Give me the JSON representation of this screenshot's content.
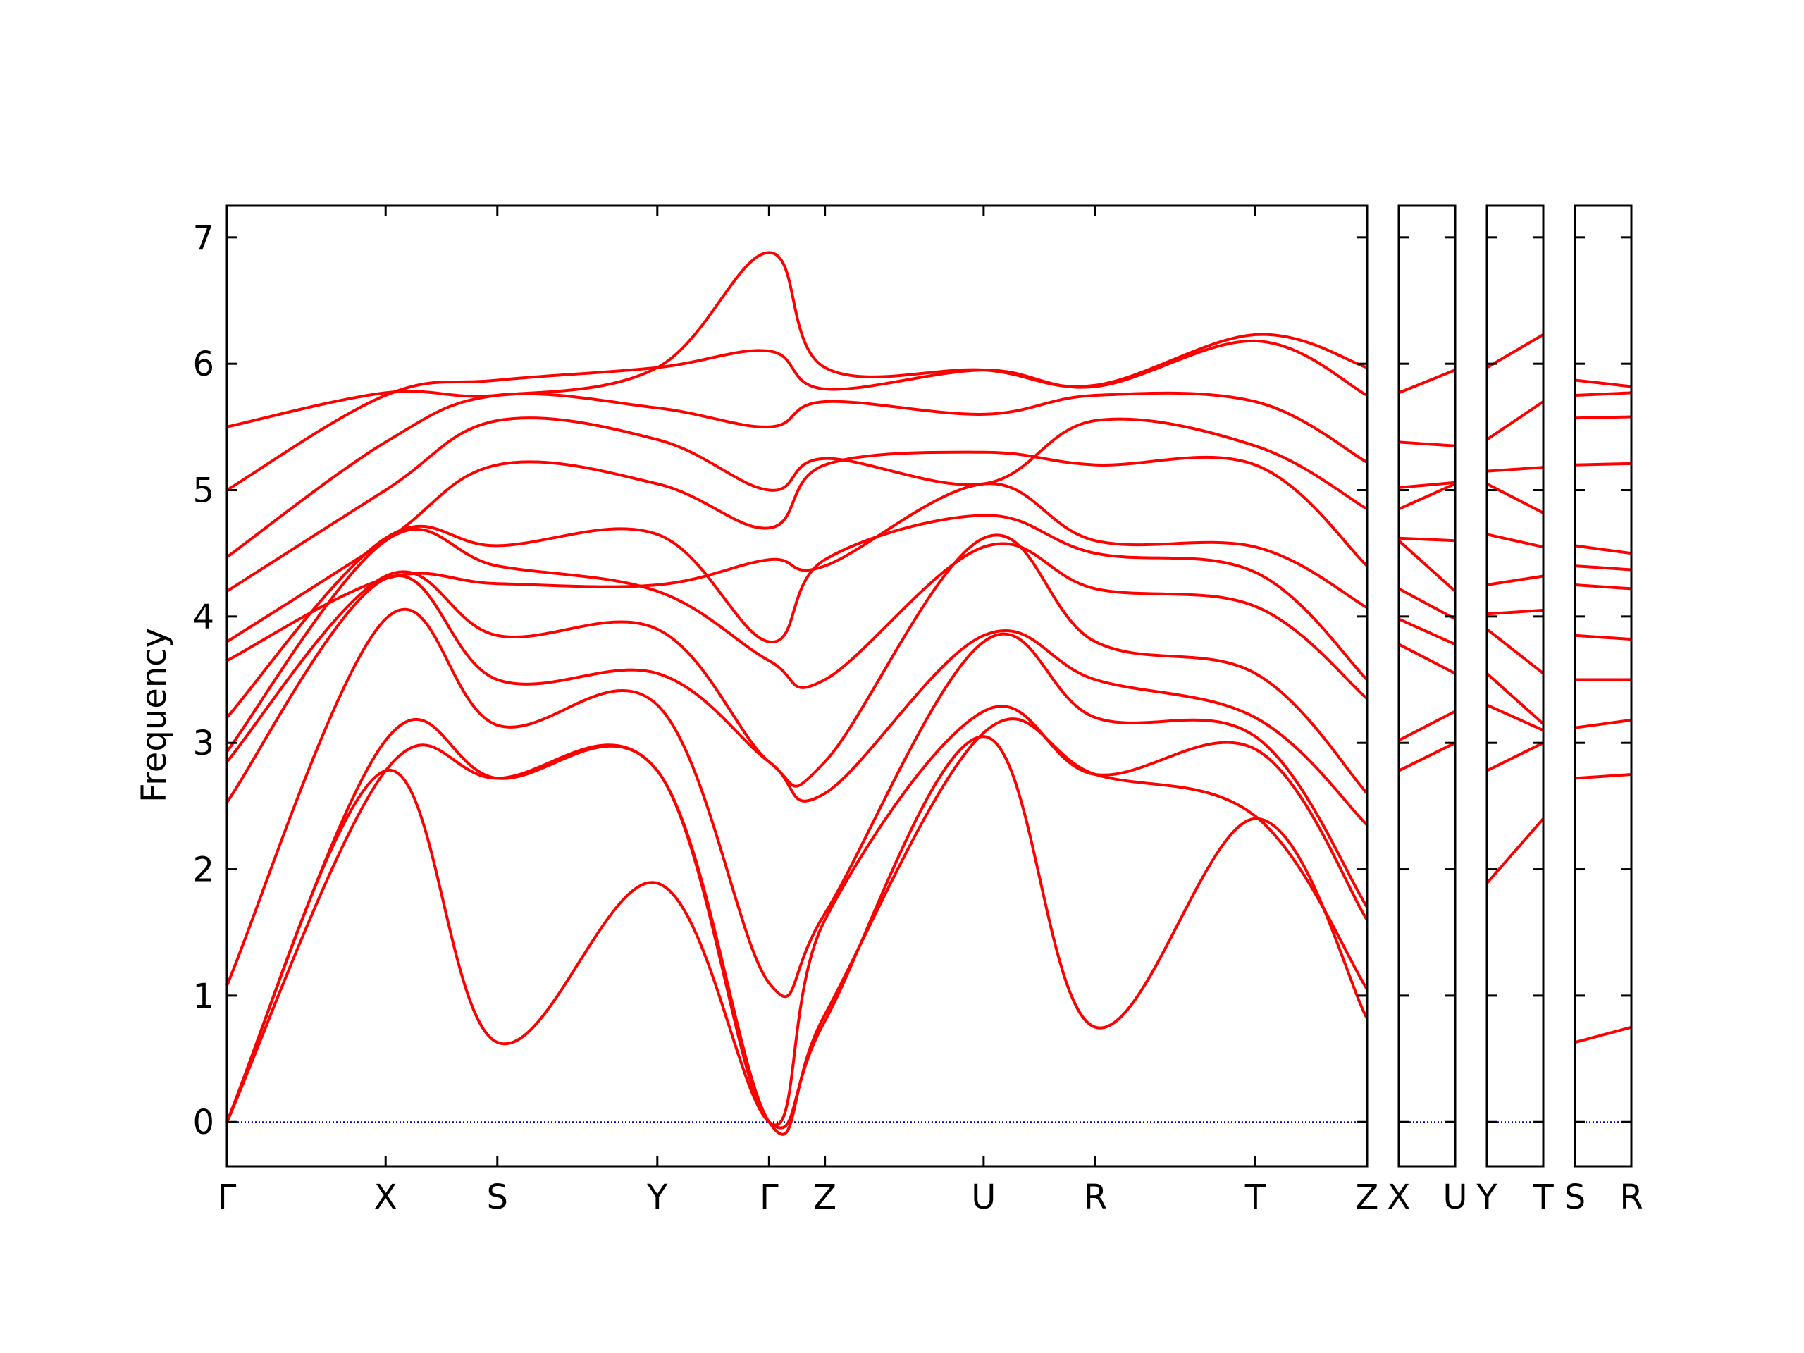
{
  "chart_data": {
    "type": "line",
    "title": "",
    "xlabel": "",
    "ylabel": "Frequency",
    "ylim": [
      -0.35,
      7.25
    ],
    "yticks": [
      0,
      1,
      2,
      3,
      4,
      5,
      6,
      7
    ],
    "grid": false,
    "legend": "none",
    "colors": {
      "bands": "#ff0000",
      "zero_line": "#0000cc",
      "axes": "#000000"
    },
    "panels": [
      {
        "labels": [
          "Γ",
          "X",
          "S",
          "Y",
          "Γ",
          "Z",
          "U",
          "R",
          "T",
          "Z"
        ],
        "segment_lengths": [
          1.25,
          0.88,
          1.26,
          0.88,
          0.44,
          1.25,
          0.88,
          1.26,
          0.88
        ],
        "bands": [
          [
            [
              0,
              0
            ],
            [
              1.25,
              2.78
            ],
            [
              2.13,
              0.63
            ],
            [
              3.39,
              1.89
            ],
            [
              4.27,
              0
            ],
            [
              4.71,
              0.8
            ],
            [
              5.96,
              3.05
            ],
            [
              6.84,
              0.75
            ],
            [
              8.1,
              2.4
            ],
            [
              8.98,
              0.82
            ]
          ],
          [
            [
              0,
              0
            ],
            [
              1.25,
              2.78
            ],
            [
              2.13,
              2.72
            ],
            [
              3.39,
              2.78
            ],
            [
              4.27,
              0
            ],
            [
              4.71,
              0.85
            ],
            [
              5.96,
              3.08
            ],
            [
              6.84,
              2.75
            ],
            [
              8.1,
              2.42
            ],
            [
              8.98,
              1.05
            ]
          ],
          [
            [
              0,
              0
            ],
            [
              1.25,
              3.02
            ],
            [
              2.13,
              2.72
            ],
            [
              3.39,
              2.78
            ],
            [
              4.27,
              0
            ],
            [
              4.71,
              1.6
            ],
            [
              5.96,
              3.25
            ],
            [
              6.84,
              2.75
            ],
            [
              8.1,
              2.95
            ],
            [
              8.98,
              1.6
            ]
          ],
          [
            [
              0,
              1.08
            ],
            [
              1.25,
              3.98
            ],
            [
              2.13,
              3.14
            ],
            [
              3.39,
              3.3
            ],
            [
              4.27,
              1.1
            ],
            [
              4.71,
              1.65
            ],
            [
              5.96,
              3.8
            ],
            [
              6.84,
              3.2
            ],
            [
              8.1,
              3.05
            ],
            [
              8.98,
              1.7
            ]
          ],
          [
            [
              0,
              2.53
            ],
            [
              1.25,
              4.3
            ],
            [
              2.13,
              3.5
            ],
            [
              3.39,
              3.55
            ],
            [
              4.27,
              2.85
            ],
            [
              4.71,
              2.6
            ],
            [
              5.96,
              3.85
            ],
            [
              6.84,
              3.5
            ],
            [
              8.1,
              3.2
            ],
            [
              8.98,
              2.35
            ]
          ],
          [
            [
              0,
              2.85
            ],
            [
              1.25,
              4.32
            ],
            [
              2.13,
              3.85
            ],
            [
              3.39,
              3.9
            ],
            [
              4.27,
              2.85
            ],
            [
              4.71,
              2.85
            ],
            [
              5.96,
              4.62
            ],
            [
              6.84,
              3.8
            ],
            [
              8.1,
              3.55
            ],
            [
              8.98,
              2.6
            ]
          ],
          [
            [
              0,
              2.93
            ],
            [
              1.25,
              4.6
            ],
            [
              2.13,
              4.4
            ],
            [
              3.39,
              4.2
            ],
            [
              4.27,
              3.65
            ],
            [
              4.71,
              3.5
            ],
            [
              5.96,
              4.55
            ],
            [
              6.84,
              4.22
            ],
            [
              8.1,
              4.08
            ],
            [
              8.98,
              3.35
            ]
          ],
          [
            [
              0,
              3.2
            ],
            [
              1.25,
              4.62
            ],
            [
              2.13,
              4.56
            ],
            [
              3.39,
              4.65
            ],
            [
              4.27,
              3.8
            ],
            [
              4.71,
              4.45
            ],
            [
              5.96,
              4.8
            ],
            [
              6.84,
              4.5
            ],
            [
              8.1,
              4.35
            ],
            [
              8.98,
              3.5
            ]
          ],
          [
            [
              0,
              3.65
            ],
            [
              1.25,
              4.3
            ],
            [
              2.13,
              4.26
            ],
            [
              3.39,
              4.25
            ],
            [
              4.27,
              4.45
            ],
            [
              4.71,
              4.4
            ],
            [
              5.96,
              5.05
            ],
            [
              6.84,
              4.6
            ],
            [
              8.1,
              4.55
            ],
            [
              8.98,
              4.07
            ]
          ],
          [
            [
              0,
              3.8
            ],
            [
              1.25,
              4.6
            ],
            [
              2.13,
              5.2
            ],
            [
              3.39,
              5.05
            ],
            [
              4.27,
              4.7
            ],
            [
              4.71,
              5.2
            ],
            [
              5.96,
              5.3
            ],
            [
              6.84,
              5.2
            ],
            [
              8.1,
              5.2
            ],
            [
              8.98,
              4.4
            ]
          ],
          [
            [
              0,
              4.2
            ],
            [
              1.25,
              5.0
            ],
            [
              2.13,
              5.55
            ],
            [
              3.39,
              5.4
            ],
            [
              4.27,
              5.0
            ],
            [
              4.71,
              5.25
            ],
            [
              5.96,
              5.05
            ],
            [
              6.84,
              5.55
            ],
            [
              8.1,
              5.35
            ],
            [
              8.98,
              4.85
            ]
          ],
          [
            [
              0,
              4.47
            ],
            [
              1.25,
              5.38
            ],
            [
              2.13,
              5.75
            ],
            [
              3.39,
              5.65
            ],
            [
              4.27,
              5.5
            ],
            [
              4.71,
              5.7
            ],
            [
              5.96,
              5.6
            ],
            [
              6.84,
              5.75
            ],
            [
              8.1,
              5.7
            ],
            [
              8.98,
              5.22
            ]
          ],
          [
            [
              0,
              5.0
            ],
            [
              1.25,
              5.75
            ],
            [
              2.13,
              5.87
            ],
            [
              3.39,
              5.97
            ],
            [
              4.27,
              6.1
            ],
            [
              4.71,
              5.8
            ],
            [
              5.96,
              5.95
            ],
            [
              6.84,
              5.82
            ],
            [
              8.1,
              6.18
            ],
            [
              8.98,
              5.75
            ]
          ],
          [
            [
              0,
              5.5
            ],
            [
              1.25,
              5.77
            ],
            [
              2.13,
              5.75
            ],
            [
              3.39,
              5.97
            ],
            [
              4.27,
              6.88
            ],
            [
              4.71,
              5.97
            ],
            [
              5.96,
              5.95
            ],
            [
              6.84,
              5.83
            ],
            [
              8.1,
              6.23
            ],
            [
              8.98,
              5.97
            ]
          ]
        ]
      },
      {
        "labels": [
          "X",
          "U"
        ],
        "segment_lengths": [
          0.44
        ],
        "bands": [
          [
            [
              0,
              2.78
            ],
            [
              0.44,
              3.0
            ]
          ],
          [
            [
              0,
              3.02
            ],
            [
              0.44,
              3.25
            ]
          ],
          [
            [
              0,
              3.78
            ],
            [
              0.44,
              3.55
            ]
          ],
          [
            [
              0,
              3.98
            ],
            [
              0.44,
              3.78
            ]
          ],
          [
            [
              0,
              4.22
            ],
            [
              0.44,
              3.98
            ]
          ],
          [
            [
              0,
              4.6
            ],
            [
              0.44,
              4.2
            ]
          ],
          [
            [
              0,
              4.62
            ],
            [
              0.44,
              4.6
            ]
          ],
          [
            [
              0,
              4.85
            ],
            [
              0.44,
              5.05
            ]
          ],
          [
            [
              0,
              5.02
            ],
            [
              0.44,
              5.06
            ]
          ],
          [
            [
              0,
              5.38
            ],
            [
              0.44,
              5.35
            ]
          ],
          [
            [
              0,
              5.77
            ],
            [
              0.44,
              5.95
            ]
          ]
        ]
      },
      {
        "labels": [
          "Y",
          "T"
        ],
        "segment_lengths": [
          0.44
        ],
        "bands": [
          [
            [
              0,
              1.89
            ],
            [
              0.44,
              2.4
            ]
          ],
          [
            [
              0,
              2.78
            ],
            [
              0.44,
              3.0
            ]
          ],
          [
            [
              0,
              3.3
            ],
            [
              0.44,
              3.1
            ]
          ],
          [
            [
              0,
              3.55
            ],
            [
              0.44,
              3.15
            ]
          ],
          [
            [
              0,
              3.9
            ],
            [
              0.44,
              3.55
            ]
          ],
          [
            [
              0,
              4.02
            ],
            [
              0.44,
              4.05
            ]
          ],
          [
            [
              0,
              4.25
            ],
            [
              0.44,
              4.32
            ]
          ],
          [
            [
              0,
              4.65
            ],
            [
              0.44,
              4.55
            ]
          ],
          [
            [
              0,
              5.05
            ],
            [
              0.44,
              4.82
            ]
          ],
          [
            [
              0,
              5.15
            ],
            [
              0.44,
              5.18
            ]
          ],
          [
            [
              0,
              5.4
            ],
            [
              0.44,
              5.7
            ]
          ],
          [
            [
              0,
              5.97
            ],
            [
              0.44,
              6.23
            ]
          ]
        ]
      },
      {
        "labels": [
          "S",
          "R"
        ],
        "segment_lengths": [
          0.44
        ],
        "bands": [
          [
            [
              0,
              0.63
            ],
            [
              0.44,
              0.75
            ]
          ],
          [
            [
              0,
              2.72
            ],
            [
              0.44,
              2.75
            ]
          ],
          [
            [
              0,
              3.12
            ],
            [
              0.44,
              3.18
            ]
          ],
          [
            [
              0,
              3.5
            ],
            [
              0.44,
              3.5
            ]
          ],
          [
            [
              0,
              3.85
            ],
            [
              0.44,
              3.82
            ]
          ],
          [
            [
              0,
              4.25
            ],
            [
              0.44,
              4.22
            ]
          ],
          [
            [
              0,
              4.4
            ],
            [
              0.44,
              4.37
            ]
          ],
          [
            [
              0,
              4.56
            ],
            [
              0.44,
              4.5
            ]
          ],
          [
            [
              0,
              5.2
            ],
            [
              0.44,
              5.21
            ]
          ],
          [
            [
              0,
              5.57
            ],
            [
              0.44,
              5.58
            ]
          ],
          [
            [
              0,
              5.75
            ],
            [
              0.44,
              5.77
            ]
          ],
          [
            [
              0,
              5.87
            ],
            [
              0.44,
              5.82
            ]
          ]
        ]
      }
    ]
  }
}
